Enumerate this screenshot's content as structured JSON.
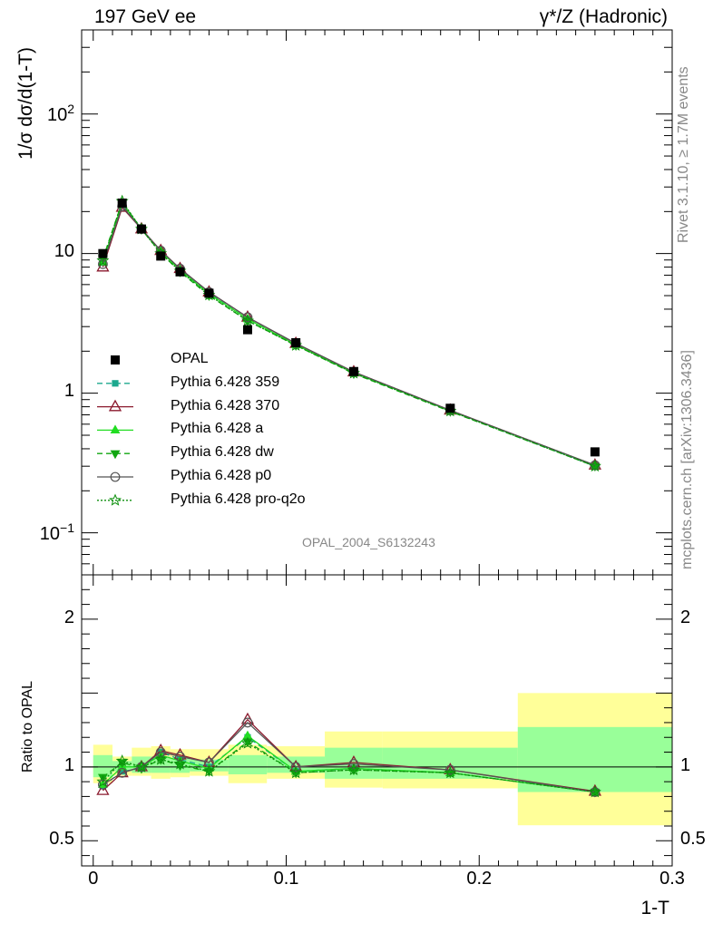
{
  "header": {
    "left_title": "197 GeV ee",
    "right_title_main": "γ*/Z (Hadronic)"
  },
  "side_labels": {
    "rivet": "Rivet 3.1.10, ≥ 1.7M events",
    "mcplots": "mcplots.cern.ch [arXiv:1306.3436]"
  },
  "watermark": "OPAL_2004_S6132243",
  "chart_data": [
    {
      "type": "line",
      "panel": "main",
      "ylabel": "1/σ dσ/d(1-T)",
      "yscale": "log",
      "ylim": [
        0.05,
        400
      ],
      "xlim": [
        -0.006,
        0.3
      ],
      "yticks": [
        {
          "label": "10",
          "sup": "−1",
          "value": 0.1
        },
        {
          "label": "1",
          "sup": "",
          "value": 1
        },
        {
          "label": "10",
          "sup": "",
          "value": 10
        },
        {
          "label": "10",
          "sup": "2",
          "value": 100
        }
      ],
      "legend_position": "middle-left",
      "x": [
        0.005,
        0.015,
        0.025,
        0.035,
        0.045,
        0.06,
        0.08,
        0.105,
        0.135,
        0.185,
        0.26
      ],
      "series": [
        {
          "name": "OPAL",
          "style": "data",
          "marker": "square-filled",
          "color": "#000000",
          "values": [
            10.0,
            23.0,
            15.0,
            9.6,
            7.4,
            5.2,
            2.85,
            2.3,
            1.43,
            0.78,
            0.38
          ]
        },
        {
          "name": "Pythia 6.428 359",
          "style": "dashed",
          "marker": "square-small",
          "color": "#1ca88e",
          "values": [
            8.6,
            22.4,
            14.9,
            10.4,
            7.7,
            5.2,
            3.4,
            2.24,
            1.4,
            0.75,
            0.3
          ]
        },
        {
          "name": "Pythia 6.428 370",
          "style": "solid",
          "marker": "triangle-open",
          "color": "#8b1a2e",
          "values": [
            8.0,
            21.4,
            15.0,
            10.5,
            7.8,
            5.3,
            3.5,
            2.27,
            1.42,
            0.755,
            0.305
          ]
        },
        {
          "name": "Pythia 6.428 a",
          "style": "solid",
          "marker": "triangle-filled",
          "color": "#22dd22",
          "values": [
            8.7,
            23.0,
            15.0,
            10.4,
            7.6,
            5.15,
            3.4,
            2.22,
            1.4,
            0.75,
            0.305
          ]
        },
        {
          "name": "Pythia 6.428 dw",
          "style": "dashed",
          "marker": "triangle-down-filled",
          "color": "#11a611",
          "values": [
            9.2,
            23.5,
            14.9,
            10.1,
            7.4,
            5.0,
            3.3,
            2.2,
            1.38,
            0.74,
            0.3
          ]
        },
        {
          "name": "Pythia 6.428 p0",
          "style": "solid",
          "marker": "circle-open",
          "color": "#555555",
          "values": [
            8.4,
            21.8,
            15.0,
            10.5,
            7.8,
            5.3,
            3.5,
            2.28,
            1.42,
            0.755,
            0.305
          ]
        },
        {
          "name": "Pythia 6.428 pro-q2o",
          "style": "dotted",
          "marker": "star-open",
          "color": "#0c8f0c",
          "values": [
            8.9,
            23.7,
            15.0,
            10.0,
            7.5,
            5.05,
            3.3,
            2.2,
            1.39,
            0.745,
            0.3
          ]
        }
      ]
    },
    {
      "type": "line",
      "panel": "ratio",
      "ylabel": "Ratio to OPAL",
      "xlabel": "1-T",
      "ylim": [
        0.33,
        2.3
      ],
      "xlim": [
        -0.006,
        0.3
      ],
      "yticks": [
        0.5,
        1,
        2
      ],
      "xticks": [
        {
          "label": "0",
          "value": 0
        },
        {
          "label": "0.1",
          "value": 0.1
        },
        {
          "label": "0.2",
          "value": 0.2
        },
        {
          "label": "0.3",
          "value": 0.3
        }
      ],
      "bands": [
        {
          "x0": 0.0,
          "x1": 0.01,
          "y_lo": 0.89,
          "y_hi": 1.15,
          "g_lo": 0.93,
          "g_hi": 1.08
        },
        {
          "x0": 0.01,
          "x1": 0.02,
          "y_lo": 0.94,
          "y_hi": 1.07,
          "g_lo": 0.97,
          "g_hi": 1.04
        },
        {
          "x0": 0.02,
          "x1": 0.03,
          "y_lo": 0.94,
          "y_hi": 1.13,
          "g_lo": 0.96,
          "g_hi": 1.07
        },
        {
          "x0": 0.03,
          "x1": 0.04,
          "y_lo": 0.92,
          "y_hi": 1.14,
          "g_lo": 0.96,
          "g_hi": 1.07
        },
        {
          "x0": 0.04,
          "x1": 0.05,
          "y_lo": 0.93,
          "y_hi": 1.12,
          "g_lo": 0.96,
          "g_hi": 1.06
        },
        {
          "x0": 0.05,
          "x1": 0.07,
          "y_lo": 0.94,
          "y_hi": 1.12,
          "g_lo": 0.97,
          "g_hi": 1.05
        },
        {
          "x0": 0.07,
          "x1": 0.09,
          "y_lo": 0.89,
          "y_hi": 1.15,
          "g_lo": 0.95,
          "g_hi": 1.08
        },
        {
          "x0": 0.09,
          "x1": 0.12,
          "y_lo": 0.92,
          "y_hi": 1.14,
          "g_lo": 0.96,
          "g_hi": 1.07
        },
        {
          "x0": 0.12,
          "x1": 0.15,
          "y_lo": 0.86,
          "y_hi": 1.24,
          "g_lo": 0.92,
          "g_hi": 1.13
        },
        {
          "x0": 0.15,
          "x1": 0.22,
          "y_lo": 0.855,
          "y_hi": 1.24,
          "g_lo": 0.92,
          "g_hi": 1.13
        },
        {
          "x0": 0.22,
          "x1": 0.3,
          "y_lo": 0.605,
          "y_hi": 1.5,
          "g_lo": 0.83,
          "g_hi": 1.27
        }
      ],
      "x": [
        0.005,
        0.015,
        0.025,
        0.035,
        0.045,
        0.06,
        0.08,
        0.105,
        0.135,
        0.185,
        0.26
      ],
      "series": [
        {
          "name": "Pythia 6.428 359",
          "values": [
            0.87,
            0.97,
            0.99,
            1.1,
            1.05,
            1.0,
            1.2,
            0.97,
            0.99,
            0.96,
            0.83
          ]
        },
        {
          "name": "Pythia 6.428 370",
          "values": [
            0.84,
            0.96,
            1.0,
            1.11,
            1.08,
            1.03,
            1.32,
            1.0,
            1.03,
            0.98,
            0.835
          ]
        },
        {
          "name": "Pythia 6.428 a",
          "values": [
            0.88,
            1.0,
            1.0,
            1.08,
            1.04,
            0.99,
            1.21,
            0.97,
            0.99,
            0.96,
            0.83
          ]
        },
        {
          "name": "Pythia 6.428 dw",
          "values": [
            0.93,
            1.03,
            0.99,
            1.05,
            1.01,
            0.97,
            1.17,
            0.96,
            0.98,
            0.96,
            0.83
          ]
        },
        {
          "name": "Pythia 6.428 p0",
          "values": [
            0.88,
            0.96,
            1.0,
            1.1,
            1.07,
            1.03,
            1.3,
            1.0,
            1.02,
            0.98,
            0.83
          ]
        },
        {
          "name": "Pythia 6.428 pro-q2o",
          "values": [
            0.9,
            1.04,
            1.0,
            1.05,
            1.02,
            0.97,
            1.16,
            0.96,
            0.98,
            0.96,
            0.83
          ]
        }
      ]
    }
  ]
}
